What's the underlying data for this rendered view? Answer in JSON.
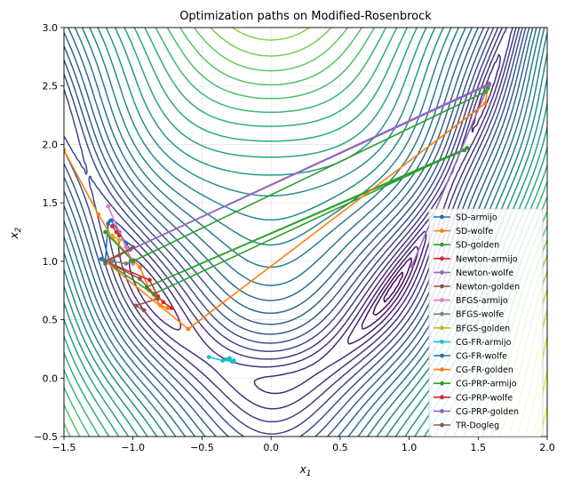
{
  "chart_data": {
    "type": "line",
    "title": "Optimization paths on Modified-Rosenbrock",
    "xlabel": "x",
    "xlabel_sub": "1",
    "ylabel": "x",
    "ylabel_sub": "2",
    "xlim": [
      -1.5,
      2.0
    ],
    "ylim": [
      -0.5,
      3.0
    ],
    "xticks": [
      "−1.5",
      "−1.0",
      "−0.5",
      "0.0",
      "0.5",
      "1.0",
      "1.5",
      "2.0"
    ],
    "yticks": [
      "−0.5",
      "0.0",
      "0.5",
      "1.0",
      "1.5",
      "2.0",
      "2.5",
      "3.0"
    ],
    "xtick_values": [
      -1.5,
      -1.0,
      -0.5,
      0.0,
      0.5,
      1.0,
      1.5,
      2.0
    ],
    "ytick_values": [
      -0.5,
      0.0,
      0.5,
      1.0,
      1.5,
      2.0,
      2.5,
      3.0
    ],
    "grid": true,
    "legend_position": "lower-right",
    "background": "contour plot of the objective (viridis colormap)",
    "series": [
      {
        "name": "SD-armijo",
        "color": "#1f77b4",
        "points": [
          [
            -1.2,
            1.0
          ],
          [
            -1.18,
            1.32
          ],
          [
            -1.16,
            1.35
          ],
          [
            -1.1,
            1.25
          ],
          [
            -1.05,
            1.15
          ],
          [
            -1.02,
            1.1
          ],
          [
            -1.2,
            1.0
          ]
        ]
      },
      {
        "name": "SD-wolfe",
        "color": "#ff7f0e",
        "points": [
          [
            -1.5,
            1.95
          ],
          [
            -1.25,
            1.4
          ],
          [
            -1.15,
            1.2
          ],
          [
            -0.95,
            0.95
          ],
          [
            -0.88,
            0.75
          ],
          [
            -0.8,
            0.62
          ],
          [
            -0.75,
            0.6
          ]
        ]
      },
      {
        "name": "SD-golden",
        "color": "#2ca02c",
        "points": [
          [
            -1.2,
            1.0
          ],
          [
            -0.85,
            0.72
          ],
          [
            1.42,
            1.97
          ],
          [
            -0.9,
            0.78
          ],
          [
            1.4,
            1.95
          ]
        ]
      },
      {
        "name": "Newton-armijo",
        "color": "#d62728",
        "points": [
          [
            -1.2,
            1.0
          ],
          [
            -0.88,
            0.84
          ],
          [
            -0.82,
            0.7
          ],
          [
            -0.78,
            0.65
          ],
          [
            -0.72,
            0.6
          ]
        ]
      },
      {
        "name": "Newton-wolfe",
        "color": "#9467bd",
        "points": [
          [
            -1.2,
            1.0
          ],
          [
            1.58,
            2.52
          ],
          [
            1.02,
            0.96
          ]
        ]
      },
      {
        "name": "Newton-golden",
        "color": "#8c564b",
        "points": [
          [
            -1.2,
            1.0
          ],
          [
            -0.95,
            0.85
          ],
          [
            -0.82,
            0.68
          ],
          [
            -0.98,
            0.62
          ],
          [
            -0.92,
            0.58
          ]
        ]
      },
      {
        "name": "BFGS-armijo",
        "color": "#e377c2",
        "points": [
          [
            -1.18,
            1.47
          ],
          [
            -1.05,
            1.12
          ],
          [
            -1.0,
            0.98
          ]
        ]
      },
      {
        "name": "BFGS-wolfe",
        "color": "#7f7f7f",
        "points": [
          [
            -1.22,
            1.02
          ],
          [
            -1.15,
            1.0
          ],
          [
            -1.05,
            0.98
          ],
          [
            -1.0,
            1.0
          ]
        ]
      },
      {
        "name": "BFGS-golden",
        "color": "#bcbd22",
        "points": [
          [
            -1.2,
            1.25
          ],
          [
            -1.15,
            1.22
          ],
          [
            -1.1,
            1.18
          ]
        ]
      },
      {
        "name": "CG-FR-armijo",
        "color": "#17becf",
        "points": [
          [
            -0.45,
            0.18
          ],
          [
            -0.35,
            0.15
          ],
          [
            -0.3,
            0.17
          ],
          [
            -0.28,
            0.14
          ],
          [
            -0.32,
            0.16
          ],
          [
            -0.27,
            0.15
          ]
        ]
      },
      {
        "name": "CG-FR-wolfe",
        "color": "#1f77b4",
        "points": [
          [
            -1.2,
            1.0
          ],
          [
            -1.23,
            1.02
          ],
          [
            -1.2,
            0.98
          ]
        ]
      },
      {
        "name": "CG-FR-golden",
        "color": "#ff7f0e",
        "points": [
          [
            -1.2,
            1.0
          ],
          [
            -0.6,
            0.42
          ],
          [
            1.55,
            2.35
          ],
          [
            1.57,
            2.48
          ]
        ]
      },
      {
        "name": "CG-PRP-armijo",
        "color": "#2ca02c",
        "points": [
          [
            -1.2,
            1.25
          ],
          [
            -1.0,
            1.0
          ],
          [
            1.55,
            2.45
          ],
          [
            1.57,
            2.48
          ]
        ]
      },
      {
        "name": "CG-PRP-wolfe",
        "color": "#d62728",
        "points": [
          [
            -1.15,
            1.3
          ],
          [
            -1.12,
            1.25
          ],
          [
            -1.1,
            1.22
          ]
        ]
      },
      {
        "name": "CG-PRP-golden",
        "color": "#9467bd",
        "points": [
          [
            -1.2,
            1.0
          ],
          [
            1.58,
            2.51
          ]
        ]
      },
      {
        "name": "TR-Dogleg",
        "color": "#8c564b",
        "points": [
          [
            -1.2,
            1.0
          ],
          [
            -1.1,
            1.05
          ],
          [
            -1.0,
            1.12
          ],
          [
            -1.2,
            1.0
          ]
        ]
      }
    ]
  }
}
